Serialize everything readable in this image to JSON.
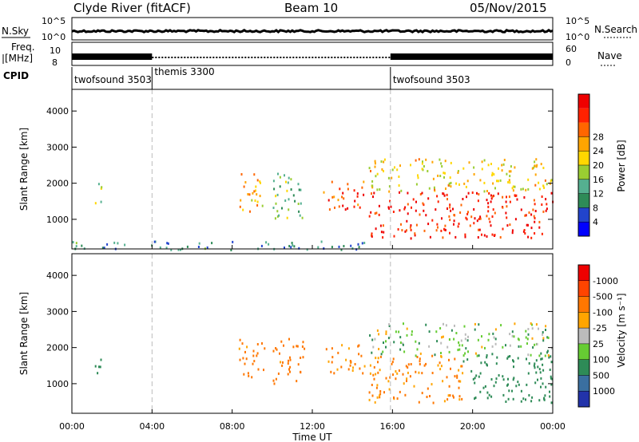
{
  "header": {
    "station": "Clyde River (fitACF)",
    "beam": "Beam 10",
    "date": "05/Nov/2015"
  },
  "summary": {
    "nsky_label": "N.Sky",
    "nsky_ticks": [
      "10^5",
      "10^0"
    ],
    "nsearch_label": "N.Search",
    "nsearch_ticks": [
      "10^5",
      "10^0"
    ],
    "freq_label_1": "Freq.",
    "freq_label_2": "[MHz]",
    "freq_ticks": [
      "10",
      "8"
    ],
    "nave_label": "Nave",
    "nave_ticks": [
      "60",
      "0"
    ],
    "cpid_label": "CPID"
  },
  "cpid": [
    {
      "name": "twofsound 3503",
      "start_hour": 0,
      "end_hour": 4
    },
    {
      "name": "themis 3300",
      "start_hour": 4,
      "end_hour": 15.9
    },
    {
      "name": "twofsound 3503",
      "start_hour": 15.9,
      "end_hour": 24
    }
  ],
  "axes": {
    "ylabel": "Slant Range [km]",
    "xlabel": "Time UT",
    "y_ticks": [
      "1000",
      "2000",
      "3000",
      "4000"
    ],
    "y_tick_values": [
      1000,
      2000,
      3000,
      4000
    ],
    "ylim": [
      180,
      4600
    ],
    "x_ticks": [
      "00:00",
      "04:00",
      "08:00",
      "12:00",
      "16:00",
      "20:00",
      "00:00"
    ],
    "x_tick_hours": [
      0,
      4,
      8,
      12,
      16,
      20,
      24
    ],
    "xlim": [
      0,
      24
    ]
  },
  "power_scale": {
    "label": "Power [dB]",
    "ticks": [
      "4",
      "8",
      "12",
      "16",
      "20",
      "24",
      "28"
    ],
    "colors": [
      "#0000ff",
      "#2244cc",
      "#2e8b57",
      "#55b090",
      "#9acd32",
      "#ffd700",
      "#ffa500",
      "#ff6600",
      "#ff2200",
      "#ee0000"
    ]
  },
  "velocity_scale": {
    "label": "Velocity [m s⁻¹]",
    "ticks": [
      "1000",
      "500",
      "100",
      "25",
      "-25",
      "-100",
      "-500",
      "-1000"
    ],
    "colors": [
      "#2233aa",
      "#3a6fa0",
      "#2e8b57",
      "#66cc33",
      "#bbbbbb",
      "#ffa500",
      "#ff7700",
      "#ff4400",
      "#ee0000"
    ]
  },
  "chart_data": {
    "type": "heatmap",
    "title": "Clyde River (fitACF) Beam 10 05/Nov/2015",
    "xlabel": "Time UT",
    "ylabel": "Slant Range [km]",
    "x_units": "hours UT",
    "ylim": [
      180,
      4600
    ],
    "xlim": [
      0,
      24
    ],
    "power_regions_dB": [
      {
        "t_start": 1.1,
        "t_end": 1.5,
        "r_min": 1300,
        "r_max": 2100,
        "power": 14
      },
      {
        "t_start": 8.3,
        "t_end": 9.6,
        "r_min": 1200,
        "r_max": 2300,
        "power": 20
      },
      {
        "t_start": 10.0,
        "t_end": 11.6,
        "r_min": 1000,
        "r_max": 2300,
        "power": 12
      },
      {
        "t_start": 12.5,
        "t_end": 14.6,
        "r_min": 1300,
        "r_max": 2100,
        "power": 26
      },
      {
        "t_start": 14.8,
        "t_end": 24.0,
        "r_min": 500,
        "r_max": 1800,
        "power": 28
      },
      {
        "t_start": 14.8,
        "t_end": 24.0,
        "r_min": 1800,
        "r_max": 2700,
        "power": 18
      },
      {
        "t_start": 0.0,
        "t_end": 15.0,
        "r_min": 180,
        "r_max": 420,
        "power": 8
      }
    ],
    "velocity_regions_ms": [
      {
        "t_start": 1.1,
        "t_end": 1.5,
        "r_min": 1300,
        "r_max": 2000,
        "velocity": 300
      },
      {
        "t_start": 8.3,
        "t_end": 9.6,
        "r_min": 1200,
        "r_max": 2300,
        "velocity": -200
      },
      {
        "t_start": 10.0,
        "t_end": 11.6,
        "r_min": 1000,
        "r_max": 2300,
        "velocity": -200
      },
      {
        "t_start": 12.5,
        "t_end": 14.6,
        "r_min": 1300,
        "r_max": 2100,
        "velocity": -150
      },
      {
        "t_start": 14.8,
        "t_end": 19.5,
        "r_min": 500,
        "r_max": 1800,
        "velocity": -150
      },
      {
        "t_start": 19.5,
        "t_end": 24.0,
        "r_min": 500,
        "r_max": 1800,
        "velocity": 300
      },
      {
        "t_start": 14.8,
        "t_end": 24.0,
        "r_min": 1800,
        "r_max": 2700,
        "velocity": 50
      }
    ]
  }
}
